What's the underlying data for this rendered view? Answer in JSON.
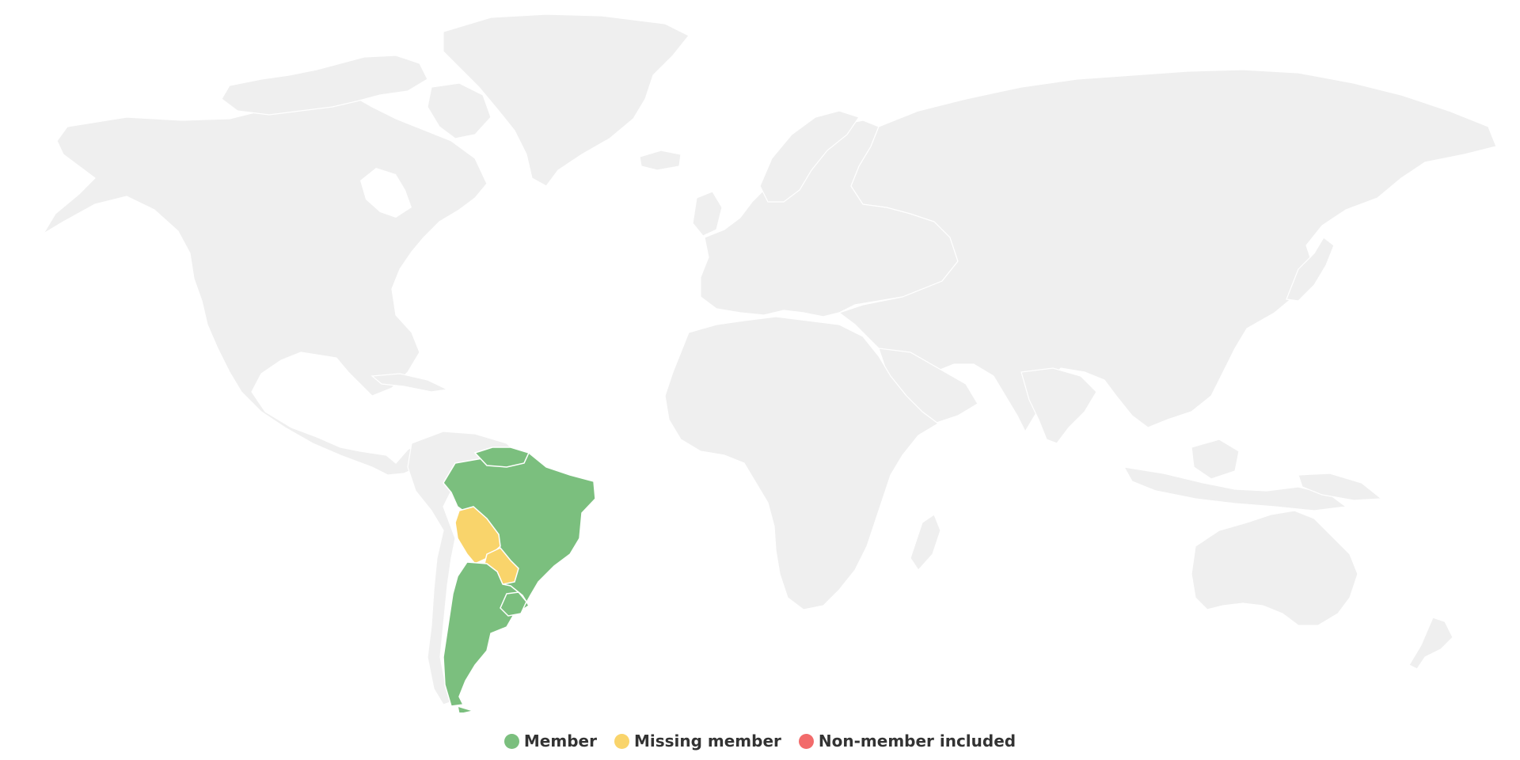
{
  "map": {
    "highlighted": {
      "member": [
        "Brazil",
        "Argentina",
        "Uruguay"
      ],
      "missing_member": [
        "Bolivia",
        "Paraguay"
      ],
      "non_member_included": []
    }
  },
  "legend": {
    "items": [
      {
        "key": "member",
        "label": "Member",
        "color": "#7bbf7e"
      },
      {
        "key": "missing",
        "label": "Missing member",
        "color": "#f9d46b"
      },
      {
        "key": "nonmember",
        "label": "Non-member included",
        "color": "#f26b6b"
      }
    ]
  }
}
